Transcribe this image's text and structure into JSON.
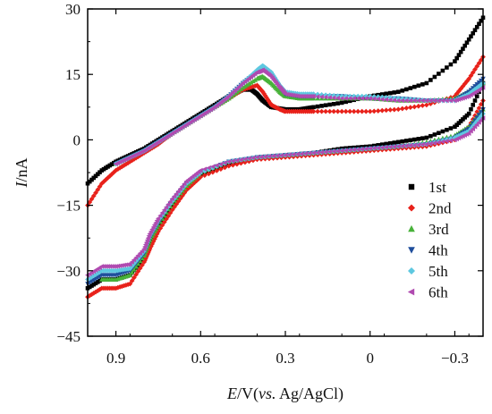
{
  "chart_data": {
    "type": "scatter",
    "title": "",
    "xlabel": "E/V(vs. Ag/AgCl)",
    "xlabel_parts": {
      "var": "E",
      "unit_prefix": "/V(",
      "ref_italic": "vs.",
      "ref_rest": " Ag/AgCl)"
    },
    "ylabel": "I/nA",
    "ylabel_parts": {
      "var": "I",
      "unit": "/nA"
    },
    "xlim": [
      1.0,
      -0.4
    ],
    "ylim": [
      -45,
      30
    ],
    "x_reversed": true,
    "xticks": [
      0.9,
      0.6,
      0.3,
      0,
      -0.3
    ],
    "xtick_labels": [
      "0.9",
      "0.6",
      "0.3",
      "0",
      "−0.3"
    ],
    "yticks": [
      30,
      15,
      0,
      -15,
      -30,
      -45
    ],
    "ytick_labels": [
      "30",
      "15",
      "0",
      "−15",
      "−30",
      "−45"
    ],
    "grid": false,
    "legend_position": "bottom-right",
    "series": [
      {
        "name": "1st",
        "color": "#000000",
        "marker": "square",
        "forward": [
          [
            1.0,
            -10
          ],
          [
            0.95,
            -7
          ],
          [
            0.9,
            -5
          ],
          [
            0.85,
            -3.5
          ],
          [
            0.8,
            -2
          ],
          [
            0.75,
            0
          ],
          [
            0.7,
            2
          ],
          [
            0.65,
            4
          ],
          [
            0.6,
            6
          ],
          [
            0.55,
            8
          ],
          [
            0.5,
            10
          ],
          [
            0.45,
            11.5
          ],
          [
            0.42,
            11.5
          ],
          [
            0.4,
            10.5
          ],
          [
            0.38,
            9
          ],
          [
            0.35,
            7.5
          ],
          [
            0.3,
            7
          ],
          [
            0.25,
            7
          ],
          [
            0.2,
            7.5
          ],
          [
            0.1,
            8.5
          ],
          [
            0,
            10
          ],
          [
            -0.1,
            11
          ],
          [
            -0.2,
            13
          ],
          [
            -0.3,
            18
          ],
          [
            -0.35,
            23
          ],
          [
            -0.4,
            28
          ]
        ],
        "reverse": [
          [
            -0.4,
            13
          ],
          [
            -0.35,
            6
          ],
          [
            -0.3,
            3
          ],
          [
            -0.2,
            0.5
          ],
          [
            -0.1,
            -0.5
          ],
          [
            0,
            -1.5
          ],
          [
            0.1,
            -2
          ],
          [
            0.2,
            -3
          ],
          [
            0.3,
            -3.5
          ],
          [
            0.4,
            -4
          ],
          [
            0.5,
            -5.5
          ],
          [
            0.6,
            -8
          ],
          [
            0.65,
            -11
          ],
          [
            0.7,
            -15
          ],
          [
            0.75,
            -20
          ],
          [
            0.78,
            -24
          ],
          [
            0.8,
            -27
          ],
          [
            0.85,
            -31
          ],
          [
            0.9,
            -32
          ],
          [
            0.95,
            -32
          ],
          [
            1.0,
            -34
          ]
        ]
      },
      {
        "name": "2nd",
        "color": "#e8211a",
        "marker": "diamond",
        "forward": [
          [
            1.0,
            -15
          ],
          [
            0.95,
            -10
          ],
          [
            0.9,
            -7
          ],
          [
            0.85,
            -5
          ],
          [
            0.8,
            -3
          ],
          [
            0.75,
            -1
          ],
          [
            0.7,
            1.5
          ],
          [
            0.65,
            3.5
          ],
          [
            0.6,
            5.5
          ],
          [
            0.55,
            7.5
          ],
          [
            0.5,
            9.5
          ],
          [
            0.45,
            11.5
          ],
          [
            0.4,
            12.5
          ],
          [
            0.38,
            11
          ],
          [
            0.35,
            8
          ],
          [
            0.32,
            7
          ],
          [
            0.3,
            6.5
          ],
          [
            0.25,
            6.5
          ],
          [
            0.2,
            6.5
          ],
          [
            0.1,
            6.5
          ],
          [
            0,
            6.5
          ],
          [
            -0.1,
            7
          ],
          [
            -0.2,
            8
          ],
          [
            -0.3,
            10
          ],
          [
            -0.35,
            14
          ],
          [
            -0.4,
            19
          ]
        ],
        "reverse": [
          [
            -0.4,
            9
          ],
          [
            -0.35,
            3
          ],
          [
            -0.3,
            0
          ],
          [
            -0.2,
            -1.5
          ],
          [
            -0.1,
            -2
          ],
          [
            0,
            -2.5
          ],
          [
            0.1,
            -3
          ],
          [
            0.2,
            -3.5
          ],
          [
            0.3,
            -4
          ],
          [
            0.4,
            -4.5
          ],
          [
            0.5,
            -6
          ],
          [
            0.6,
            -8.5
          ],
          [
            0.65,
            -11.5
          ],
          [
            0.7,
            -16
          ],
          [
            0.75,
            -21
          ],
          [
            0.78,
            -25
          ],
          [
            0.8,
            -28
          ],
          [
            0.85,
            -33
          ],
          [
            0.9,
            -34
          ],
          [
            0.95,
            -34
          ],
          [
            1.0,
            -36
          ]
        ]
      },
      {
        "name": "3rd",
        "color": "#48b23a",
        "marker": "triangle-up",
        "forward": [
          [
            0.9,
            -5.5
          ],
          [
            0.85,
            -4
          ],
          [
            0.8,
            -2.5
          ],
          [
            0.75,
            -0.5
          ],
          [
            0.7,
            1.5
          ],
          [
            0.65,
            3.5
          ],
          [
            0.6,
            5.5
          ],
          [
            0.55,
            7.5
          ],
          [
            0.5,
            9.5
          ],
          [
            0.45,
            12
          ],
          [
            0.4,
            14
          ],
          [
            0.38,
            14.5
          ],
          [
            0.35,
            13
          ],
          [
            0.32,
            11
          ],
          [
            0.3,
            10
          ],
          [
            0.25,
            9.5
          ],
          [
            0.2,
            9.5
          ],
          [
            0.1,
            9.5
          ],
          [
            0,
            9.5
          ],
          [
            -0.1,
            9
          ],
          [
            -0.2,
            9
          ],
          [
            -0.3,
            9.5
          ],
          [
            -0.35,
            11
          ],
          [
            -0.4,
            13
          ]
        ],
        "reverse": [
          [
            -0.4,
            7
          ],
          [
            -0.35,
            3
          ],
          [
            -0.3,
            1
          ],
          [
            -0.2,
            -0.5
          ],
          [
            -0.1,
            -1.5
          ],
          [
            0,
            -2
          ],
          [
            0.1,
            -2.5
          ],
          [
            0.2,
            -3
          ],
          [
            0.3,
            -3.5
          ],
          [
            0.4,
            -4
          ],
          [
            0.5,
            -5
          ],
          [
            0.6,
            -7.5
          ],
          [
            0.65,
            -10.5
          ],
          [
            0.7,
            -14.5
          ],
          [
            0.75,
            -19.5
          ],
          [
            0.78,
            -23
          ],
          [
            0.8,
            -26.5
          ],
          [
            0.85,
            -31
          ],
          [
            0.9,
            -32
          ],
          [
            0.95,
            -32
          ]
        ]
      },
      {
        "name": "4th",
        "color": "#1f4e9c",
        "marker": "triangle-down",
        "forward": [
          [
            0.9,
            -5.5
          ],
          [
            0.85,
            -4
          ],
          [
            0.8,
            -2.5
          ],
          [
            0.75,
            -0.5
          ],
          [
            0.7,
            1.5
          ],
          [
            0.65,
            3.5
          ],
          [
            0.6,
            5.5
          ],
          [
            0.55,
            7.5
          ],
          [
            0.5,
            10
          ],
          [
            0.45,
            13
          ],
          [
            0.4,
            15.5
          ],
          [
            0.38,
            16.5
          ],
          [
            0.35,
            15
          ],
          [
            0.32,
            12
          ],
          [
            0.3,
            10.5
          ],
          [
            0.25,
            10
          ],
          [
            0.2,
            10
          ],
          [
            0.1,
            10
          ],
          [
            0,
            9.5
          ],
          [
            -0.1,
            9.5
          ],
          [
            -0.2,
            9
          ],
          [
            -0.3,
            9
          ],
          [
            -0.35,
            11
          ],
          [
            -0.4,
            14
          ]
        ],
        "reverse": [
          [
            -0.4,
            7
          ],
          [
            -0.35,
            2.5
          ],
          [
            -0.3,
            0.5
          ],
          [
            -0.2,
            -1
          ],
          [
            -0.1,
            -1.5
          ],
          [
            0,
            -2
          ],
          [
            0.1,
            -2.5
          ],
          [
            0.2,
            -3
          ],
          [
            0.3,
            -3.5
          ],
          [
            0.4,
            -4
          ],
          [
            0.5,
            -5
          ],
          [
            0.6,
            -7.5
          ],
          [
            0.65,
            -10
          ],
          [
            0.7,
            -14
          ],
          [
            0.75,
            -19
          ],
          [
            0.78,
            -22.5
          ],
          [
            0.8,
            -26
          ],
          [
            0.85,
            -30
          ],
          [
            0.9,
            -31
          ],
          [
            0.95,
            -31
          ],
          [
            1.0,
            -33
          ]
        ]
      },
      {
        "name": "5th",
        "color": "#5ec8e0",
        "marker": "diamond",
        "forward": [
          [
            0.9,
            -5.5
          ],
          [
            0.85,
            -4
          ],
          [
            0.8,
            -2.5
          ],
          [
            0.75,
            -0.5
          ],
          [
            0.7,
            1.5
          ],
          [
            0.65,
            3.5
          ],
          [
            0.6,
            5.5
          ],
          [
            0.55,
            7.5
          ],
          [
            0.5,
            10
          ],
          [
            0.45,
            13
          ],
          [
            0.4,
            16
          ],
          [
            0.38,
            17
          ],
          [
            0.35,
            15.5
          ],
          [
            0.32,
            12.5
          ],
          [
            0.3,
            11
          ],
          [
            0.25,
            10.5
          ],
          [
            0.2,
            10.5
          ],
          [
            0.1,
            10
          ],
          [
            0,
            10
          ],
          [
            -0.1,
            9.5
          ],
          [
            -0.2,
            9
          ],
          [
            -0.3,
            9
          ],
          [
            -0.35,
            10.5
          ],
          [
            -0.4,
            13
          ]
        ],
        "reverse": [
          [
            -0.4,
            6
          ],
          [
            -0.35,
            2
          ],
          [
            -0.3,
            0.5
          ],
          [
            -0.2,
            -1
          ],
          [
            -0.1,
            -1.5
          ],
          [
            0,
            -2
          ],
          [
            0.1,
            -2.5
          ],
          [
            0.2,
            -3
          ],
          [
            0.3,
            -3.5
          ],
          [
            0.4,
            -4
          ],
          [
            0.5,
            -5
          ],
          [
            0.6,
            -7.5
          ],
          [
            0.65,
            -10
          ],
          [
            0.7,
            -14
          ],
          [
            0.75,
            -18.5
          ],
          [
            0.78,
            -22
          ],
          [
            0.8,
            -25.5
          ],
          [
            0.85,
            -29.5
          ],
          [
            0.9,
            -30
          ],
          [
            0.95,
            -30
          ],
          [
            1.0,
            -32
          ]
        ]
      },
      {
        "name": "6th",
        "color": "#b04ab0",
        "marker": "triangle-left",
        "forward": [
          [
            0.9,
            -5.5
          ],
          [
            0.85,
            -4
          ],
          [
            0.8,
            -2.5
          ],
          [
            0.75,
            -0.5
          ],
          [
            0.7,
            1.5
          ],
          [
            0.65,
            3.5
          ],
          [
            0.6,
            5.5
          ],
          [
            0.55,
            7.5
          ],
          [
            0.5,
            10
          ],
          [
            0.45,
            13
          ],
          [
            0.4,
            15.5
          ],
          [
            0.38,
            16
          ],
          [
            0.35,
            14.5
          ],
          [
            0.32,
            12
          ],
          [
            0.3,
            10.5
          ],
          [
            0.25,
            10
          ],
          [
            0.2,
            10
          ],
          [
            0.1,
            9.5
          ],
          [
            0,
            9.5
          ],
          [
            -0.1,
            9
          ],
          [
            -0.2,
            9
          ],
          [
            -0.3,
            9
          ],
          [
            -0.35,
            10
          ],
          [
            -0.4,
            12
          ]
        ],
        "reverse": [
          [
            -0.4,
            5
          ],
          [
            -0.35,
            1.5
          ],
          [
            -0.3,
            0
          ],
          [
            -0.2,
            -1
          ],
          [
            -0.1,
            -1.5
          ],
          [
            0,
            -2
          ],
          [
            0.1,
            -2.5
          ],
          [
            0.2,
            -3
          ],
          [
            0.3,
            -3.5
          ],
          [
            0.4,
            -4
          ],
          [
            0.5,
            -5
          ],
          [
            0.6,
            -7
          ],
          [
            0.65,
            -9.5
          ],
          [
            0.7,
            -13.5
          ],
          [
            0.75,
            -18
          ],
          [
            0.78,
            -21.5
          ],
          [
            0.8,
            -25
          ],
          [
            0.85,
            -28.5
          ],
          [
            0.9,
            -29
          ],
          [
            0.95,
            -29
          ],
          [
            1.0,
            -31
          ]
        ]
      }
    ]
  }
}
